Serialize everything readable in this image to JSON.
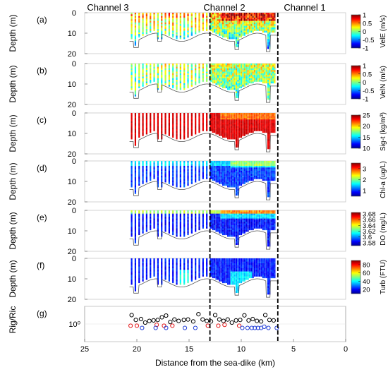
{
  "chart_data": {
    "type": "heatmap",
    "x_axis": {
      "label": "Distance from the sea-dike (km)",
      "range": [
        25,
        0
      ],
      "reversed": true,
      "ticks": [
        "25",
        "20",
        "15",
        "10",
        "5",
        "0"
      ]
    },
    "channels": [
      {
        "label": "Channel 3",
        "boundary_km": 13
      },
      {
        "label": "Channel 2",
        "boundary_km": 6.5
      },
      {
        "label": "Channel 1",
        "boundary_km": null
      }
    ],
    "panels": [
      {
        "tag": "(a)",
        "ylabel": "Depth (m)",
        "yticks": [
          "0",
          "10",
          "20"
        ],
        "ylim": [
          0,
          20
        ],
        "colorbar_label": "VelE (m/s)",
        "colorbar_ticks": [
          "1",
          "0.5",
          "0",
          "-0.5",
          "-1"
        ],
        "range": [
          -1,
          1
        ],
        "colormap": "jet"
      },
      {
        "tag": "(b)",
        "ylabel": "Depth (m)",
        "yticks": [
          "0",
          "10",
          "20"
        ],
        "ylim": [
          0,
          20
        ],
        "colorbar_label": "VelN (m/s)",
        "colorbar_ticks": [
          "1",
          "0.5",
          "0",
          "-0.5",
          "-1"
        ],
        "range": [
          -1,
          1
        ],
        "colormap": "jet"
      },
      {
        "tag": "(c)",
        "ylabel": "Depth (m)",
        "yticks": [
          "0",
          "10",
          "20"
        ],
        "ylim": [
          0,
          20
        ],
        "colorbar_label": "Sig-t (kg/m³)",
        "colorbar_ticks": [
          "25",
          "20",
          "15",
          "10"
        ],
        "range": [
          10,
          25
        ],
        "colormap": "jet"
      },
      {
        "tag": "(d)",
        "ylabel": "Depth (m)",
        "yticks": [
          "0",
          "10",
          "20"
        ],
        "ylim": [
          0,
          20
        ],
        "colorbar_label": "Chl-a (ug/L)",
        "colorbar_ticks": [
          "3",
          "2",
          "1"
        ],
        "range": [
          0.5,
          3.5
        ],
        "colormap": "jet"
      },
      {
        "tag": "(e)",
        "ylabel": "Depth (m)",
        "yticks": [
          "0",
          "10",
          "20"
        ],
        "ylim": [
          0,
          20
        ],
        "colorbar_label": "DO (mg/L)",
        "colorbar_ticks": [
          "3.68",
          "3.66",
          "3.64",
          "3.62",
          "3.6",
          "3.58"
        ],
        "range": [
          3.57,
          3.685
        ],
        "colormap": "jet"
      },
      {
        "tag": "(f)",
        "ylabel": "Depth (m)",
        "yticks": [
          "0",
          "10",
          "20"
        ],
        "ylim": [
          0,
          20
        ],
        "colorbar_label": "Turb (FTU)",
        "colorbar_ticks": [
          "80",
          "60",
          "40",
          "20"
        ],
        "range": [
          10,
          90
        ],
        "colormap": "jet"
      }
    ],
    "ri_panel": {
      "tag": "(g)",
      "ylabel": "Rig/Ric",
      "ytick": "10⁰",
      "scale": "log",
      "ylim": [
        0.1,
        10
      ],
      "series": [
        {
          "color": "#000000",
          "points": [
            [
              20.5,
              3.2
            ],
            [
              20.1,
              1.7
            ],
            [
              19.6,
              1.9
            ],
            [
              19.2,
              1.2
            ],
            [
              18.8,
              1.5
            ],
            [
              18.4,
              1.6
            ],
            [
              18.0,
              1.7
            ],
            [
              17.6,
              2.4
            ],
            [
              17.2,
              3.0
            ],
            [
              16.8,
              1.3
            ],
            [
              16.4,
              1.8
            ],
            [
              16.0,
              1.5
            ],
            [
              15.5,
              1.7
            ],
            [
              15.1,
              1.8
            ],
            [
              14.6,
              1.4
            ],
            [
              14.1,
              3.6
            ],
            [
              13.7,
              1.8
            ],
            [
              13.3,
              1.5
            ],
            [
              12.9,
              1.4
            ],
            [
              12.5,
              3.2
            ],
            [
              12.1,
              1.8
            ],
            [
              11.7,
              1.5
            ],
            [
              11.3,
              1.8
            ],
            [
              10.9,
              1.2
            ],
            [
              10.5,
              1.6
            ],
            [
              10.1,
              1.7
            ],
            [
              9.7,
              3.1
            ],
            [
              9.3,
              1.6
            ],
            [
              8.9,
              1.9
            ],
            [
              8.5,
              1.5
            ],
            [
              8.1,
              1.4
            ],
            [
              7.7,
              3.2
            ],
            [
              7.3,
              1.7
            ],
            [
              6.9,
              1.6
            ]
          ]
        },
        {
          "color": "#e31a1c",
          "points": [
            [
              20.6,
              0.8
            ],
            [
              20.0,
              0.8
            ],
            [
              18.1,
              0.9
            ],
            [
              17.4,
              0.8
            ],
            [
              16.6,
              0.8
            ],
            [
              13.2,
              0.8
            ],
            [
              12.2,
              0.8
            ],
            [
              11.6,
              0.9
            ],
            [
              10.2,
              0.8
            ]
          ]
        },
        {
          "color": "#1f3bd6",
          "points": [
            [
              19.5,
              0.6
            ],
            [
              18.2,
              0.6
            ],
            [
              17.2,
              0.6
            ],
            [
              15.4,
              0.6
            ],
            [
              14.4,
              0.6
            ],
            [
              9.9,
              0.6
            ],
            [
              9.4,
              0.6
            ],
            [
              9.0,
              0.6
            ],
            [
              8.7,
              0.6
            ],
            [
              8.4,
              0.6
            ],
            [
              8.1,
              0.6
            ],
            [
              7.8,
              0.7
            ],
            [
              7.4,
              0.6
            ],
            [
              6.6,
              0.6
            ]
          ]
        }
      ]
    }
  }
}
